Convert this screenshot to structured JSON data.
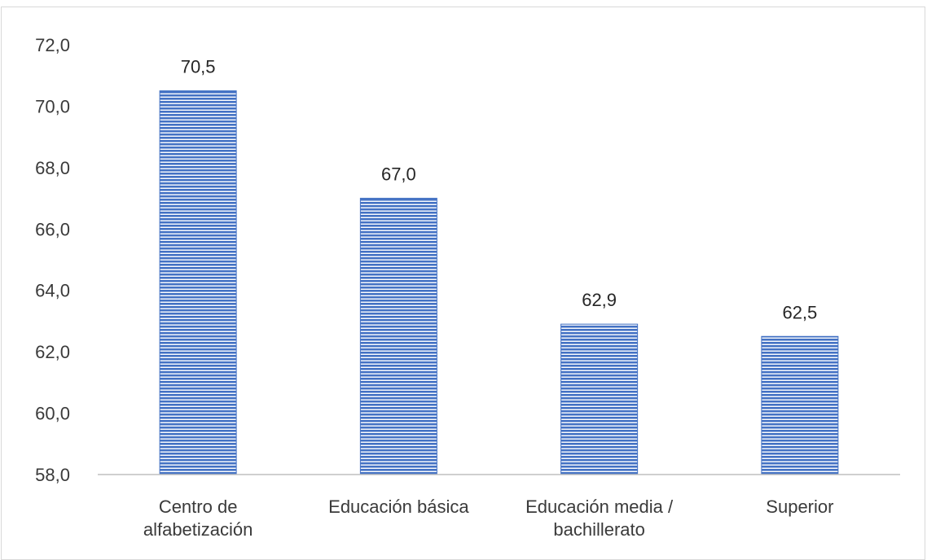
{
  "chart_data": {
    "type": "bar",
    "categories": [
      [
        "Centro de",
        "alfabetización"
      ],
      [
        "Educación básica"
      ],
      [
        "Educación media /",
        "bachillerato"
      ],
      [
        "Superior"
      ]
    ],
    "values": [
      70.5,
      67.0,
      62.9,
      62.5
    ],
    "value_labels": [
      "70,5",
      "67,0",
      "62,9",
      "62,5"
    ],
    "ylim": [
      58.0,
      72.0
    ],
    "yticks": [
      58.0,
      60.0,
      62.0,
      64.0,
      66.0,
      68.0,
      70.0,
      72.0
    ],
    "ytick_labels": [
      "58,0",
      "60,0",
      "62,0",
      "64,0",
      "66,0",
      "68,0",
      "70,0",
      "72,0"
    ],
    "grid": false,
    "legend": "none",
    "bar_color": "#4472c4",
    "bar_pattern": "horizontal-stripes",
    "title": "",
    "xlabel": "",
    "ylabel": ""
  }
}
